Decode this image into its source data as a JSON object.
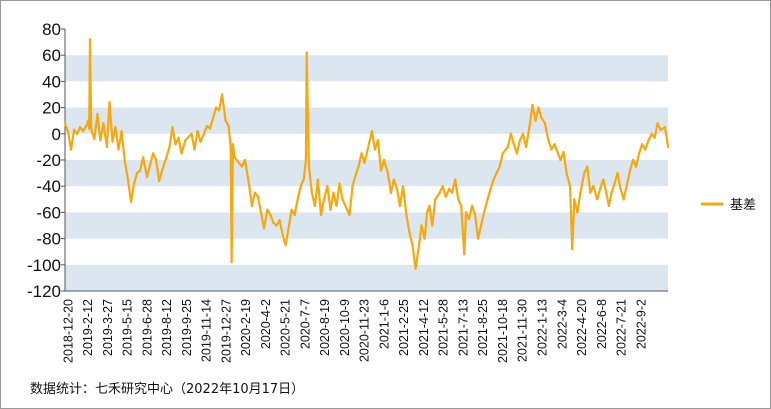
{
  "source_note": "数据统计：七禾研究中心（2022年10月17日）",
  "colors": {
    "series": "#F5A90F",
    "band": "#DCE6F1",
    "axis": "#555555",
    "border": "#9A9A9A"
  },
  "chart_data": {
    "type": "line",
    "ylim": [
      -120,
      80
    ],
    "yticks": [
      80,
      60,
      40,
      20,
      0,
      -20,
      -40,
      -60,
      -80,
      -100,
      -120
    ],
    "ytick_labels": [
      "80",
      "60",
      "40",
      "20",
      "0",
      "-20",
      "-40",
      "-60",
      "-80",
      "-100",
      "-120"
    ],
    "grid": "alternating horizontal bands",
    "legend_position": "right",
    "x_tick_labels": [
      "2018-12-20",
      "2019-2-12",
      "2019-3-27",
      "2019-5-15",
      "2019-6-28",
      "2019-8-12",
      "2019-9-25",
      "2019-11-14",
      "2019-12-27",
      "2020-2-19",
      "2020-4-2",
      "2020-5-21",
      "2020-7-7",
      "2020-8-19",
      "2020-10-9",
      "2020-11-23",
      "2021-1-6",
      "2021-2-25",
      "2021-4-12",
      "2021-5-28",
      "2021-7-13",
      "2021-8-25",
      "2021-10-18",
      "2021-11-30",
      "2022-1-13",
      "2022-3-4",
      "2022-4-20",
      "2022-6-8",
      "2022-7-21",
      "2022-9-2"
    ],
    "series": [
      {
        "name": "基差",
        "points": [
          [
            "2018-12-20",
            8
          ],
          [
            "2018-12-27",
            2
          ],
          [
            "2019-1-3",
            -12
          ],
          [
            "2019-1-10",
            3
          ],
          [
            "2019-1-17",
            0
          ],
          [
            "2019-1-24",
            5
          ],
          [
            "2019-1-31",
            2
          ],
          [
            "2019-2-7",
            6
          ],
          [
            "2019-2-12",
            10
          ],
          [
            "2019-2-14",
            4
          ],
          [
            "2019-2-16",
            72
          ],
          [
            "2019-2-19",
            3
          ],
          [
            "2019-2-26",
            -4
          ],
          [
            "2019-3-5",
            15
          ],
          [
            "2019-3-12",
            -5
          ],
          [
            "2019-3-19",
            8
          ],
          [
            "2019-3-27",
            -10
          ],
          [
            "2019-4-2",
            24
          ],
          [
            "2019-4-9",
            -6
          ],
          [
            "2019-4-16",
            5
          ],
          [
            "2019-4-23",
            -12
          ],
          [
            "2019-4-30",
            2
          ],
          [
            "2019-5-8",
            -22
          ],
          [
            "2019-5-15",
            -35
          ],
          [
            "2019-5-22",
            -52
          ],
          [
            "2019-5-29",
            -38
          ],
          [
            "2019-6-5",
            -30
          ],
          [
            "2019-6-12",
            -28
          ],
          [
            "2019-6-19",
            -18
          ],
          [
            "2019-6-28",
            -33
          ],
          [
            "2019-7-5",
            -24
          ],
          [
            "2019-7-12",
            -15
          ],
          [
            "2019-7-19",
            -20
          ],
          [
            "2019-7-26",
            -36
          ],
          [
            "2019-8-2",
            -28
          ],
          [
            "2019-8-12",
            -18
          ],
          [
            "2019-8-19",
            -10
          ],
          [
            "2019-8-26",
            5
          ],
          [
            "2019-9-2",
            -8
          ],
          [
            "2019-9-9",
            -3
          ],
          [
            "2019-9-16",
            -15
          ],
          [
            "2019-9-25",
            -5
          ],
          [
            "2019-10-9",
            0
          ],
          [
            "2019-10-16",
            -12
          ],
          [
            "2019-10-23",
            2
          ],
          [
            "2019-10-30",
            -6
          ],
          [
            "2019-11-7",
            0
          ],
          [
            "2019-11-14",
            6
          ],
          [
            "2019-11-21",
            4
          ],
          [
            "2019-11-28",
            12
          ],
          [
            "2019-12-5",
            20
          ],
          [
            "2019-12-12",
            18
          ],
          [
            "2019-12-19",
            30
          ],
          [
            "2019-12-27",
            10
          ],
          [
            "2020-1-3",
            6
          ],
          [
            "2020-1-8",
            -10
          ],
          [
            "2020-1-10",
            -98
          ],
          [
            "2020-1-13",
            -8
          ],
          [
            "2020-1-17",
            -18
          ],
          [
            "2020-2-3",
            -25
          ],
          [
            "2020-2-10",
            -20
          ],
          [
            "2020-2-19",
            -38
          ],
          [
            "2020-2-26",
            -55
          ],
          [
            "2020-3-4",
            -45
          ],
          [
            "2020-3-11",
            -48
          ],
          [
            "2020-3-18",
            -60
          ],
          [
            "2020-3-25",
            -72
          ],
          [
            "2020-4-2",
            -58
          ],
          [
            "2020-4-9",
            -62
          ],
          [
            "2020-4-16",
            -68
          ],
          [
            "2020-4-23",
            -70
          ],
          [
            "2020-4-30",
            -66
          ],
          [
            "2020-5-8",
            -78
          ],
          [
            "2020-5-14",
            -85
          ],
          [
            "2020-5-21",
            -72
          ],
          [
            "2020-5-28",
            -58
          ],
          [
            "2020-6-4",
            -62
          ],
          [
            "2020-6-11",
            -50
          ],
          [
            "2020-6-18",
            -40
          ],
          [
            "2020-6-25",
            -35
          ],
          [
            "2020-6-30",
            -20
          ],
          [
            "2020-7-2",
            62
          ],
          [
            "2020-7-7",
            -25
          ],
          [
            "2020-7-14",
            -45
          ],
          [
            "2020-7-21",
            -55
          ],
          [
            "2020-7-28",
            -35
          ],
          [
            "2020-8-4",
            -62
          ],
          [
            "2020-8-11",
            -50
          ],
          [
            "2020-8-19",
            -40
          ],
          [
            "2020-8-26",
            -58
          ],
          [
            "2020-9-2",
            -45
          ],
          [
            "2020-9-9",
            -55
          ],
          [
            "2020-9-16",
            -38
          ],
          [
            "2020-9-23",
            -50
          ],
          [
            "2020-10-9",
            -62
          ],
          [
            "2020-10-16",
            -40
          ],
          [
            "2020-10-23",
            -32
          ],
          [
            "2020-10-30",
            -25
          ],
          [
            "2020-11-6",
            -15
          ],
          [
            "2020-11-13",
            -22
          ],
          [
            "2020-11-23",
            -8
          ],
          [
            "2020-11-30",
            2
          ],
          [
            "2020-12-7",
            -12
          ],
          [
            "2020-12-14",
            -5
          ],
          [
            "2020-12-21",
            -28
          ],
          [
            "2020-12-28",
            -20
          ],
          [
            "2021-1-6",
            -30
          ],
          [
            "2021-1-13",
            -45
          ],
          [
            "2021-1-20",
            -35
          ],
          [
            "2021-1-27",
            -42
          ],
          [
            "2021-2-3",
            -55
          ],
          [
            "2021-2-10",
            -40
          ],
          [
            "2021-2-18",
            -62
          ],
          [
            "2021-2-25",
            -75
          ],
          [
            "2021-3-4",
            -85
          ],
          [
            "2021-3-11",
            -103
          ],
          [
            "2021-3-18",
            -88
          ],
          [
            "2021-3-25",
            -70
          ],
          [
            "2021-4-1",
            -80
          ],
          [
            "2021-4-7",
            -60
          ],
          [
            "2021-4-12",
            -55
          ],
          [
            "2021-4-19",
            -70
          ],
          [
            "2021-4-26",
            -50
          ],
          [
            "2021-5-6",
            -45
          ],
          [
            "2021-5-13",
            -40
          ],
          [
            "2021-5-20",
            -48
          ],
          [
            "2021-5-28",
            -42
          ],
          [
            "2021-6-4",
            -45
          ],
          [
            "2021-6-11",
            -35
          ],
          [
            "2021-6-18",
            -50
          ],
          [
            "2021-6-25",
            -55
          ],
          [
            "2021-7-2",
            -92
          ],
          [
            "2021-7-6",
            -60
          ],
          [
            "2021-7-13",
            -65
          ],
          [
            "2021-7-20",
            -55
          ],
          [
            "2021-7-27",
            -62
          ],
          [
            "2021-8-3",
            -80
          ],
          [
            "2021-8-10",
            -70
          ],
          [
            "2021-8-17",
            -60
          ],
          [
            "2021-8-25",
            -50
          ],
          [
            "2021-9-1",
            -42
          ],
          [
            "2021-9-8",
            -35
          ],
          [
            "2021-9-15",
            -30
          ],
          [
            "2021-9-22",
            -25
          ],
          [
            "2021-9-29",
            -15
          ],
          [
            "2021-10-11",
            -10
          ],
          [
            "2021-10-18",
            0
          ],
          [
            "2021-10-25",
            -8
          ],
          [
            "2021-11-1",
            -15
          ],
          [
            "2021-11-8",
            -5
          ],
          [
            "2021-11-15",
            0
          ],
          [
            "2021-11-22",
            -10
          ],
          [
            "2021-11-30",
            5
          ],
          [
            "2021-12-7",
            22
          ],
          [
            "2021-12-14",
            10
          ],
          [
            "2021-12-21",
            20
          ],
          [
            "2021-12-28",
            12
          ],
          [
            "2022-1-5",
            8
          ],
          [
            "2022-1-13",
            -5
          ],
          [
            "2022-1-20",
            -12
          ],
          [
            "2022-1-27",
            -8
          ],
          [
            "2022-2-10",
            -20
          ],
          [
            "2022-2-17",
            -14
          ],
          [
            "2022-2-24",
            -30
          ],
          [
            "2022-3-4",
            -40
          ],
          [
            "2022-3-9",
            -88
          ],
          [
            "2022-3-14",
            -50
          ],
          [
            "2022-3-21",
            -60
          ],
          [
            "2022-3-28",
            -45
          ],
          [
            "2022-4-6",
            -30
          ],
          [
            "2022-4-13",
            -25
          ],
          [
            "2022-4-20",
            -45
          ],
          [
            "2022-4-27",
            -40
          ],
          [
            "2022-5-6",
            -50
          ],
          [
            "2022-5-13",
            -42
          ],
          [
            "2022-5-20",
            -35
          ],
          [
            "2022-5-27",
            -45
          ],
          [
            "2022-6-2",
            -55
          ],
          [
            "2022-6-8",
            -45
          ],
          [
            "2022-6-15",
            -38
          ],
          [
            "2022-6-22",
            -30
          ],
          [
            "2022-6-29",
            -42
          ],
          [
            "2022-7-6",
            -50
          ],
          [
            "2022-7-13",
            -40
          ],
          [
            "2022-7-21",
            -28
          ],
          [
            "2022-7-28",
            -20
          ],
          [
            "2022-8-4",
            -25
          ],
          [
            "2022-8-11",
            -15
          ],
          [
            "2022-8-18",
            -8
          ],
          [
            "2022-8-25",
            -12
          ],
          [
            "2022-9-2",
            -5
          ],
          [
            "2022-9-9",
            0
          ],
          [
            "2022-9-16",
            -3
          ],
          [
            "2022-9-23",
            8
          ],
          [
            "2022-9-30",
            3
          ],
          [
            "2022-10-10",
            5
          ],
          [
            "2022-10-17",
            -10
          ]
        ]
      }
    ]
  }
}
